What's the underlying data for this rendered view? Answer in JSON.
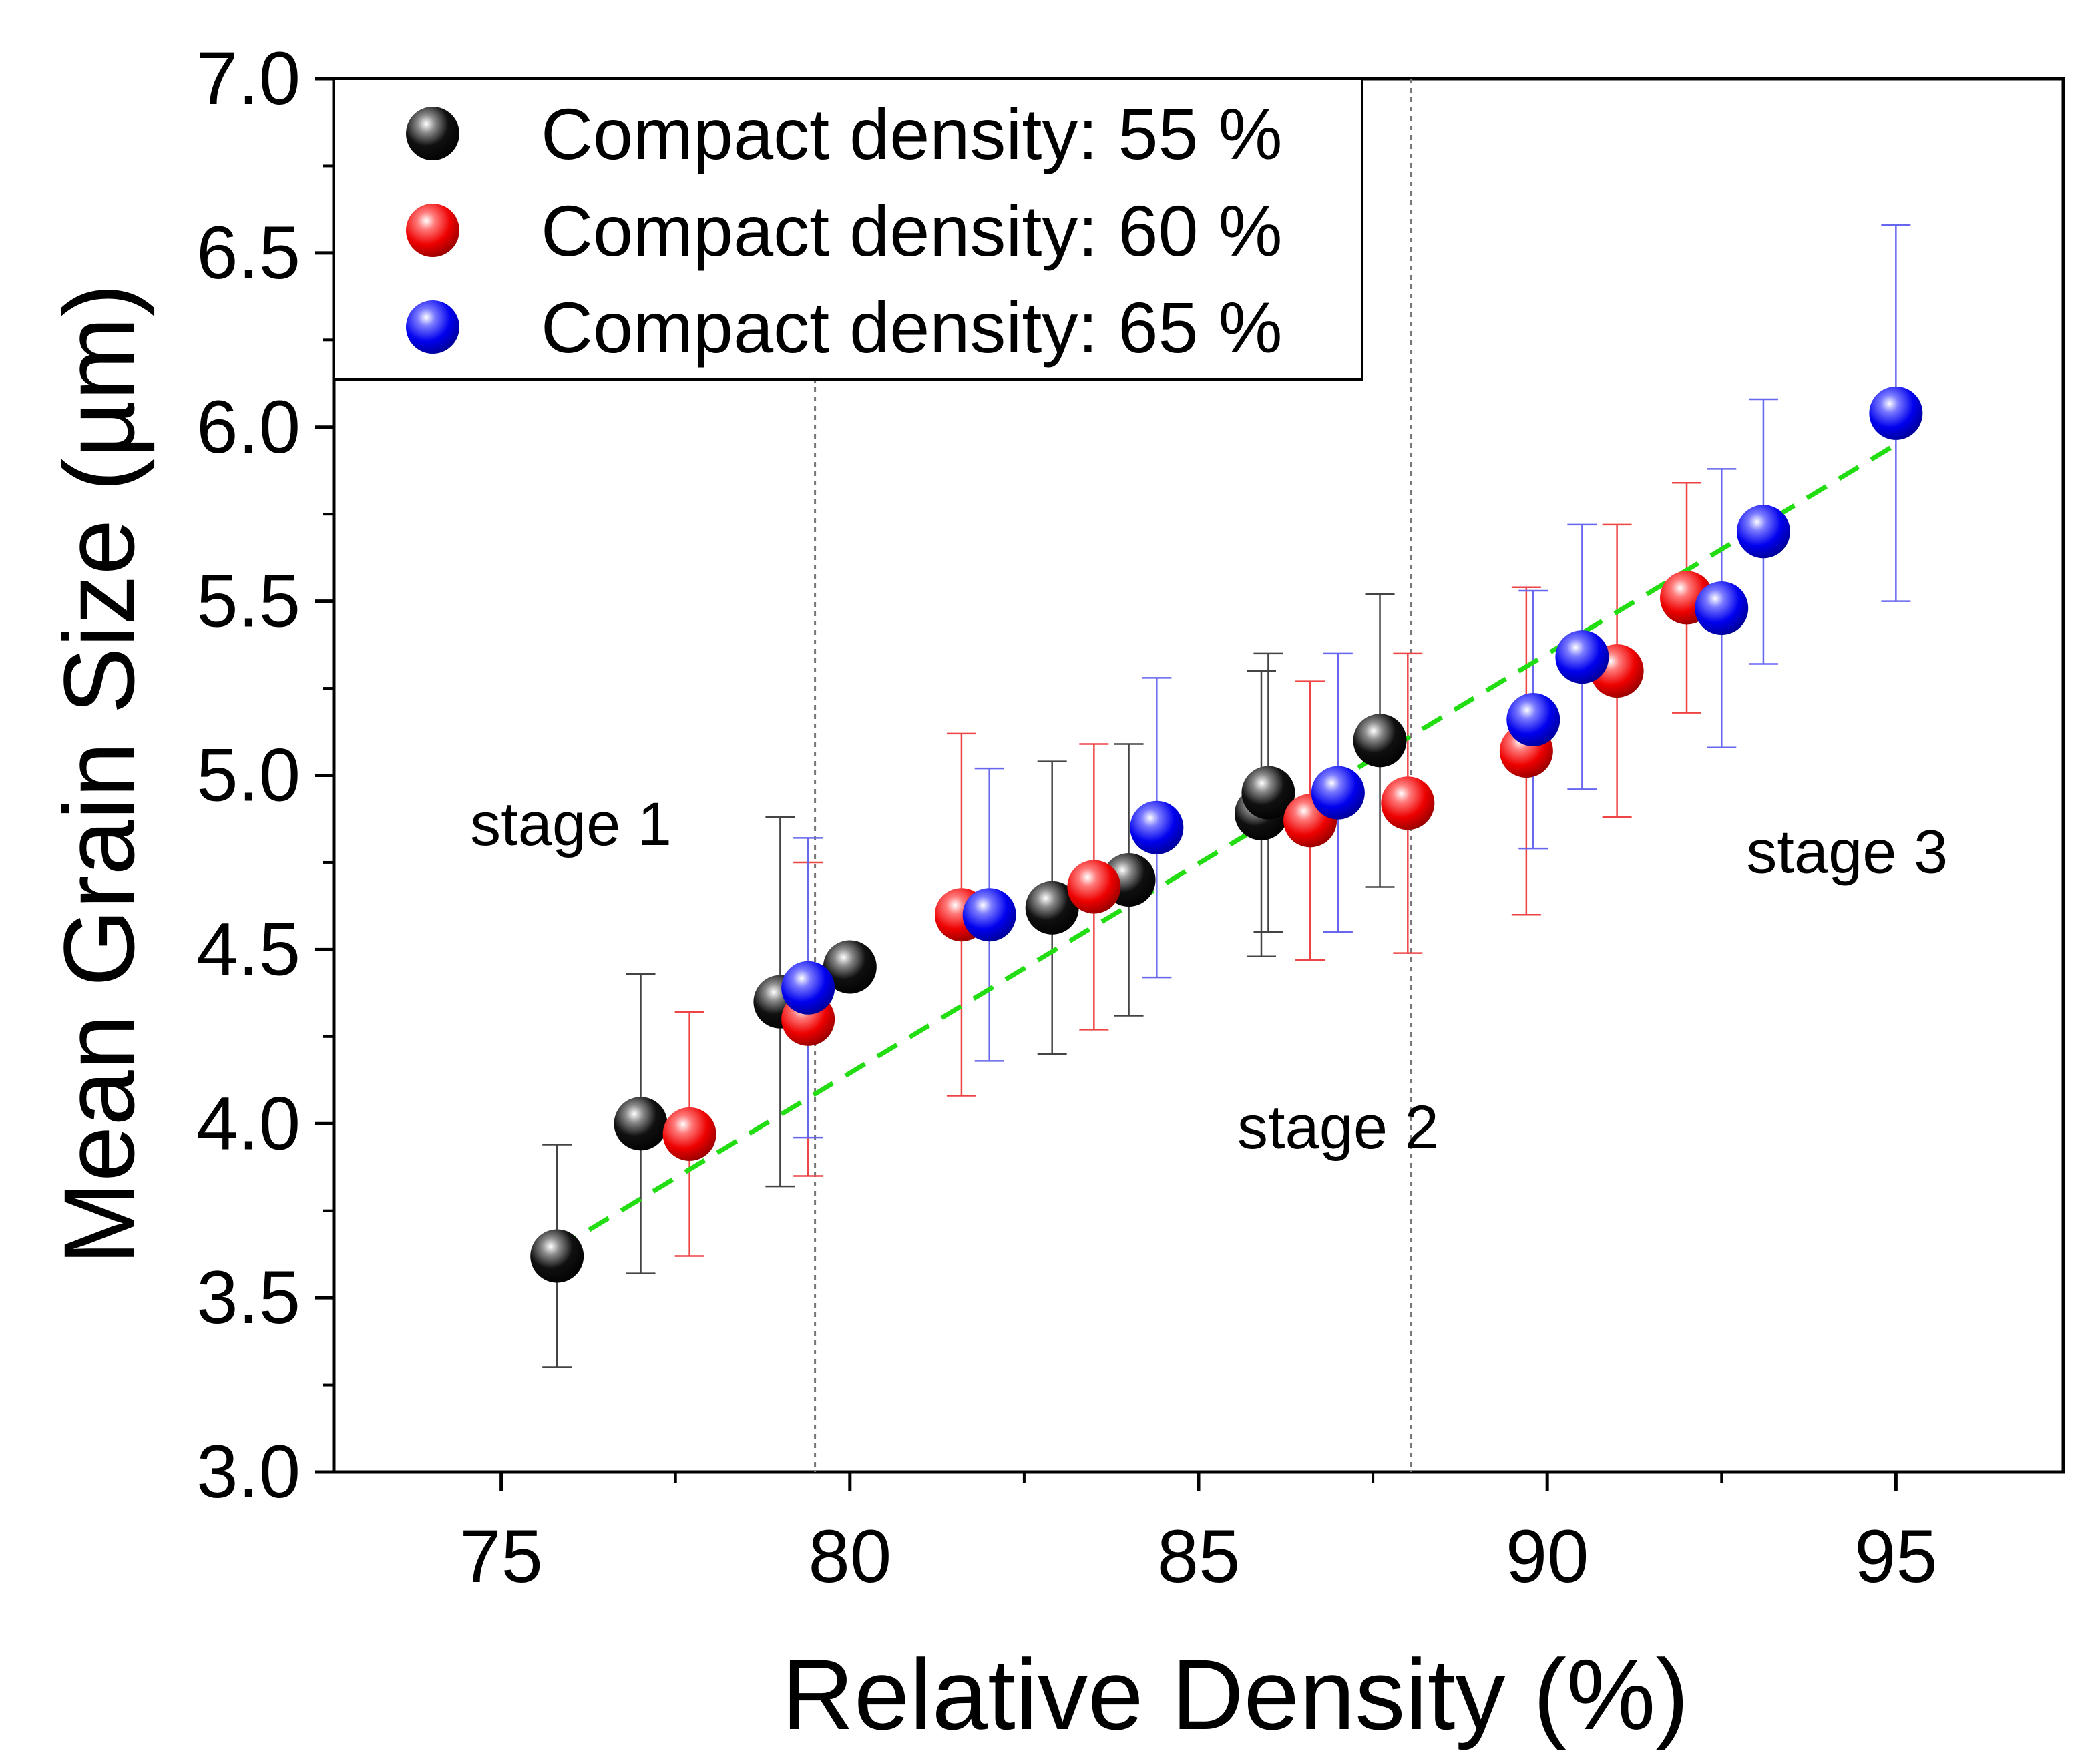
{
  "chart_data": {
    "type": "scatter",
    "title": "",
    "xlabel": "Relative Density (%)",
    "ylabel": "Mean Grain Size (µm)",
    "xlim": [
      72.6,
      97.4
    ],
    "ylim": [
      3.0,
      7.0
    ],
    "xticks": [
      75,
      80,
      85,
      90,
      95
    ],
    "yticks": [
      3.0,
      3.5,
      4.0,
      4.5,
      5.0,
      5.5,
      6.0,
      6.5,
      7.0
    ],
    "ytick_labels": [
      "3.0",
      "3.5",
      "4.0",
      "4.5",
      "5.0",
      "5.5",
      "6.0",
      "6.5",
      "7.0"
    ],
    "grid": false,
    "legend_position": "top-left",
    "series": [
      {
        "name": "Compact density: 55 %",
        "color": "#000000",
        "points": [
          {
            "x": 75.8,
            "y": 3.62,
            "err": 0.32
          },
          {
            "x": 77.0,
            "y": 4.0,
            "err": 0.43
          },
          {
            "x": 79.0,
            "y": 4.35,
            "err": 0.53
          },
          {
            "x": 80.0,
            "y": 4.45,
            "err": 0.0
          },
          {
            "x": 82.9,
            "y": 4.62,
            "err": 0.42
          },
          {
            "x": 84.0,
            "y": 4.7,
            "err": 0.39
          },
          {
            "x": 85.9,
            "y": 4.89,
            "err": 0.41
          },
          {
            "x": 86.0,
            "y": 4.95,
            "err": 0.4
          },
          {
            "x": 87.6,
            "y": 5.1,
            "err": 0.42
          }
        ]
      },
      {
        "name": "Compact density: 60 %",
        "color": "#ff0000",
        "points": [
          {
            "x": 77.7,
            "y": 3.97,
            "err": 0.35
          },
          {
            "x": 79.4,
            "y": 4.3,
            "err": 0.45
          },
          {
            "x": 81.6,
            "y": 4.6,
            "err": 0.52
          },
          {
            "x": 83.5,
            "y": 4.68,
            "err": 0.41
          },
          {
            "x": 86.6,
            "y": 4.87,
            "err": 0.4
          },
          {
            "x": 88.0,
            "y": 4.92,
            "err": 0.43
          },
          {
            "x": 89.7,
            "y": 5.07,
            "err": 0.47
          },
          {
            "x": 91.0,
            "y": 5.3,
            "err": 0.42
          },
          {
            "x": 92.0,
            "y": 5.51,
            "err": 0.33
          }
        ]
      },
      {
        "name": "Compact density: 65 %",
        "color": "#0000ff",
        "points": [
          {
            "x": 79.4,
            "y": 4.39,
            "err": 0.43
          },
          {
            "x": 82.0,
            "y": 4.6,
            "err": 0.42
          },
          {
            "x": 84.4,
            "y": 4.85,
            "err": 0.43
          },
          {
            "x": 87.0,
            "y": 4.95,
            "err": 0.4
          },
          {
            "x": 89.8,
            "y": 5.16,
            "err": 0.37
          },
          {
            "x": 90.5,
            "y": 5.34,
            "err": 0.38
          },
          {
            "x": 92.5,
            "y": 5.48,
            "err": 0.4
          },
          {
            "x": 93.1,
            "y": 5.7,
            "err": 0.38
          },
          {
            "x": 95.0,
            "y": 6.04,
            "err": 0.54
          }
        ]
      }
    ],
    "fit_line": {
      "style": "dashed",
      "color": "#22dd11",
      "x": [
        75.8,
        95.0
      ],
      "y": [
        3.64,
        5.95
      ]
    },
    "stage_boundaries": [
      79.5,
      88.05
    ],
    "annotations": [
      {
        "text": "stage 1",
        "x": 76.0,
        "y": 4.8
      },
      {
        "text": "stage 2",
        "x": 87.0,
        "y": 3.93
      },
      {
        "text": "stage 3",
        "x": 94.3,
        "y": 4.72
      }
    ]
  }
}
